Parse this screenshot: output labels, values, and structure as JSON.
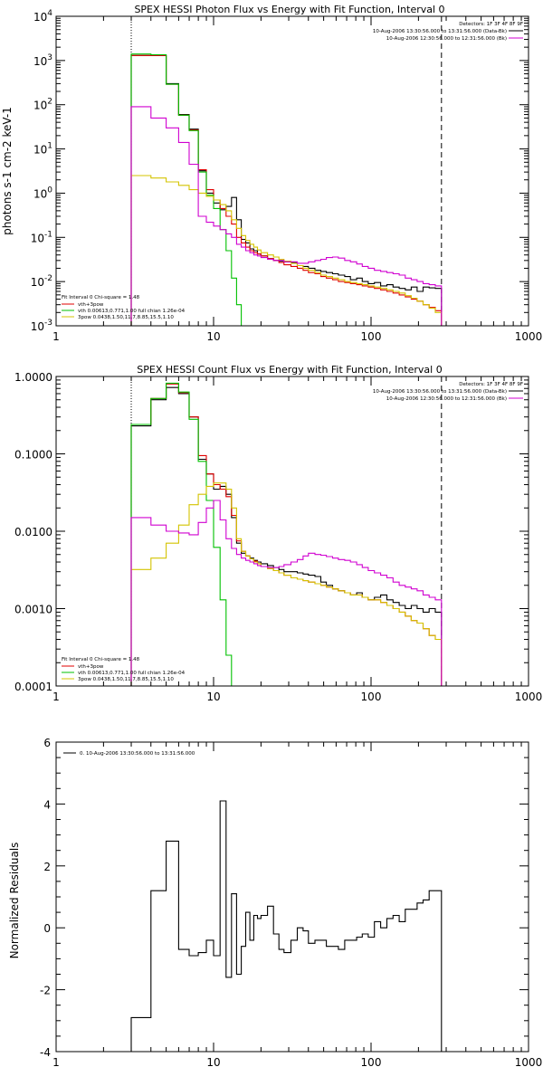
{
  "chart_data": [
    {
      "type": "line",
      "title": "SPEX HESSI Photon Flux vs Energy with Fit Function, Interval 0",
      "xlabel": "",
      "ylabel": "photons s-1 cm-2 keV-1",
      "xscale": "log",
      "yscale": "log",
      "xlim": [
        1,
        1000
      ],
      "ylim": [
        0.001,
        10000
      ],
      "x_ticks": [
        "1",
        "10",
        "100",
        "1000"
      ],
      "y_ticks": [
        "10^-3",
        "10^-2",
        "10^-1",
        "10^0",
        "10^1",
        "10^2",
        "10^3",
        "10^4"
      ],
      "legend_top": [
        "Detectors: 1F 3F 4F 8F 9F",
        "10-Aug-2006 13:30:56.000 to 13:31:56.000 (Data-Bk)",
        "10-Aug-2006 12:30:56.000 to 12:31:56.000 (Bk)"
      ],
      "legend_bottom": [
        "Fit Interval 0   Chi-square = 1.48",
        "vth+3pow",
        "vth 0.00613,0.771,1.00   full chian 1.26e-04",
        "3pow 0.0438,1.50,11.7,8.85,15.5,1.10"
      ],
      "vlines": [
        3,
        280
      ],
      "energy_edges": [
        3,
        4,
        5,
        6,
        7,
        8,
        9,
        10,
        11,
        12,
        13,
        14,
        15,
        16,
        17,
        18,
        19,
        20,
        22,
        24,
        26,
        28,
        31,
        34,
        37,
        40,
        44,
        48,
        52,
        57,
        62,
        68,
        74,
        81,
        88,
        96,
        105,
        115,
        126,
        138,
        151,
        165,
        180,
        196,
        214,
        234,
        256,
        280
      ],
      "series": [
        {
          "name": "Data-Bk",
          "color": "#000000",
          "values": [
            1300,
            1300,
            300,
            60,
            28,
            3.2,
            1.0,
            0.6,
            0.42,
            0.5,
            0.8,
            0.25,
            0.09,
            0.075,
            0.055,
            0.05,
            0.042,
            0.038,
            0.033,
            0.03,
            0.029,
            0.028,
            0.027,
            0.023,
            0.022,
            0.02,
            0.018,
            0.017,
            0.016,
            0.015,
            0.014,
            0.013,
            0.011,
            0.012,
            0.01,
            0.009,
            0.0095,
            0.008,
            0.0085,
            0.0075,
            0.007,
            0.0065,
            0.0075,
            0.006,
            0.0075,
            0.0072,
            0.007
          ]
        },
        {
          "name": "vth+3pow",
          "color": "#e00000",
          "values": [
            1300,
            1300,
            290,
            58,
            27,
            3.4,
            1.2,
            0.7,
            0.45,
            0.3,
            0.2,
            0.1,
            0.075,
            0.06,
            0.05,
            0.045,
            0.042,
            0.038,
            0.033,
            0.03,
            0.027,
            0.024,
            0.022,
            0.02,
            0.018,
            0.016,
            0.015,
            0.013,
            0.012,
            0.011,
            0.01,
            0.0095,
            0.009,
            0.0085,
            0.008,
            0.0075,
            0.007,
            0.0065,
            0.006,
            0.0055,
            0.005,
            0.0045,
            0.004,
            0.0036,
            0.003,
            0.0026,
            0.0022
          ]
        },
        {
          "name": "vth",
          "color": "#00c000",
          "values": [
            1400,
            1350,
            290,
            58,
            26,
            3.0,
            0.9,
            0.45,
            0.15,
            0.05,
            0.012,
            0.003,
            0.001
          ]
        },
        {
          "name": "3pow",
          "color": "#d4c400",
          "values": [
            2.5,
            2.2,
            1.8,
            1.5,
            1.2,
            1.0,
            0.85,
            0.7,
            0.55,
            0.4,
            0.25,
            0.16,
            0.11,
            0.085,
            0.07,
            0.06,
            0.052,
            0.045,
            0.04,
            0.036,
            0.032,
            0.029,
            0.026,
            0.023,
            0.02,
            0.018,
            0.016,
            0.014,
            0.013,
            0.012,
            0.011,
            0.01,
            0.0095,
            0.009,
            0.0085,
            0.008,
            0.0075,
            0.007,
            0.0065,
            0.006,
            0.0055,
            0.0048,
            0.0042,
            0.0036,
            0.003,
            0.0025,
            0.002
          ]
        },
        {
          "name": "Bk",
          "color": "#d000d0",
          "values": [
            90,
            50,
            30,
            14,
            4.5,
            0.3,
            0.22,
            0.18,
            0.15,
            0.12,
            0.1,
            0.07,
            0.06,
            0.05,
            0.045,
            0.04,
            0.038,
            0.035,
            0.032,
            0.03,
            0.03,
            0.028,
            0.028,
            0.026,
            0.026,
            0.028,
            0.03,
            0.032,
            0.035,
            0.036,
            0.034,
            0.03,
            0.028,
            0.025,
            0.022,
            0.02,
            0.018,
            0.017,
            0.016,
            0.015,
            0.014,
            0.012,
            0.011,
            0.01,
            0.009,
            0.0085,
            0.008
          ]
        }
      ]
    },
    {
      "type": "line",
      "title": "SPEX HESSI Count Flux vs Energy with Fit Function, Interval 0",
      "xlabel": "",
      "ylabel": "",
      "xscale": "log",
      "yscale": "log",
      "xlim": [
        1,
        1000
      ],
      "ylim": [
        0.0001,
        1.0
      ],
      "x_ticks": [
        "1",
        "10",
        "100",
        "1000"
      ],
      "y_ticks": [
        "0.0001",
        "0.0010",
        "0.0100",
        "0.1000",
        "1.0000"
      ],
      "legend_top": [
        "Detectors: 1F 3F 4F 8F 9F",
        "10-Aug-2006 13:30:56.000 to 13:31:56.000 (Data-Bk)",
        "10-Aug-2006 12:30:56.000 to 12:31:56.000 (Bk)"
      ],
      "legend_bottom": [
        "Fit Interval 0   Chi-square = 1.48",
        "vth+3pow",
        "vth 0.00613,0.771,1.00   full chian 1.26e-04",
        "3pow 0.0438,1.50,11.7,8.85,15.5,1.10"
      ],
      "vlines": [
        3,
        280
      ],
      "energy_edges": [
        3,
        4,
        5,
        6,
        7,
        8,
        9,
        10,
        11,
        12,
        13,
        14,
        15,
        16,
        17,
        18,
        19,
        20,
        22,
        24,
        26,
        28,
        31,
        34,
        37,
        40,
        44,
        48,
        52,
        57,
        62,
        68,
        74,
        81,
        88,
        96,
        105,
        115,
        126,
        138,
        151,
        165,
        180,
        196,
        214,
        234,
        256,
        280
      ],
      "series": [
        {
          "name": "Data-Bk",
          "color": "#000000",
          "values": [
            0.23,
            0.5,
            0.72,
            0.6,
            0.3,
            0.085,
            0.055,
            0.035,
            0.038,
            0.03,
            0.015,
            0.007,
            0.0052,
            0.0048,
            0.0045,
            0.0042,
            0.004,
            0.0038,
            0.0036,
            0.0034,
            0.0032,
            0.003,
            0.003,
            0.0029,
            0.0028,
            0.0027,
            0.0026,
            0.0022,
            0.002,
            0.0018,
            0.0017,
            0.0016,
            0.0015,
            0.0016,
            0.0014,
            0.0013,
            0.0014,
            0.0015,
            0.0013,
            0.0012,
            0.0011,
            0.001,
            0.0011,
            0.001,
            0.0009,
            0.001,
            0.0009
          ]
        },
        {
          "name": "vth+3pow",
          "color": "#e00000",
          "values": [
            0.24,
            0.52,
            0.8,
            0.62,
            0.3,
            0.095,
            0.055,
            0.04,
            0.035,
            0.028,
            0.016,
            0.0075,
            0.0055,
            0.0048,
            0.0044,
            0.0041,
            0.0038,
            0.0035,
            0.0033,
            0.0031,
            0.0029,
            0.0027,
            0.0025,
            0.0024,
            0.0023,
            0.0022,
            0.0021,
            0.002,
            0.0019,
            0.0018,
            0.0017,
            0.0016,
            0.0015,
            0.0015,
            0.0014,
            0.0013,
            0.0013,
            0.0012,
            0.0011,
            0.001,
            0.0009,
            0.0008,
            0.0007,
            0.00065,
            0.00055,
            0.00045,
            0.0004
          ]
        },
        {
          "name": "vth",
          "color": "#00c000",
          "values": [
            0.24,
            0.52,
            0.82,
            0.63,
            0.28,
            0.08,
            0.025,
            0.0062,
            0.0013,
            0.00025,
            8e-05
          ]
        },
        {
          "name": "3pow",
          "color": "#d4c400",
          "values": [
            0.0032,
            0.0045,
            0.007,
            0.012,
            0.022,
            0.03,
            0.038,
            0.042,
            0.042,
            0.035,
            0.02,
            0.008,
            0.0055,
            0.0048,
            0.0044,
            0.004,
            0.0038,
            0.0035,
            0.0033,
            0.0031,
            0.0029,
            0.0027,
            0.0025,
            0.0024,
            0.0023,
            0.0022,
            0.0021,
            0.002,
            0.0019,
            0.0018,
            0.0017,
            0.0016,
            0.0015,
            0.0015,
            0.0014,
            0.0013,
            0.0013,
            0.0012,
            0.0011,
            0.001,
            0.0009,
            0.0008,
            0.0007,
            0.00065,
            0.00055,
            0.00045,
            0.0004
          ]
        },
        {
          "name": "Bk",
          "color": "#d000d0",
          "values": [
            0.015,
            0.012,
            0.01,
            0.0095,
            0.009,
            0.013,
            0.02,
            0.025,
            0.014,
            0.008,
            0.006,
            0.005,
            0.0045,
            0.0042,
            0.004,
            0.0038,
            0.0036,
            0.0035,
            0.0034,
            0.0034,
            0.0035,
            0.0037,
            0.004,
            0.0043,
            0.0048,
            0.0052,
            0.005,
            0.0049,
            0.0047,
            0.0045,
            0.0043,
            0.0042,
            0.004,
            0.0037,
            0.0034,
            0.0031,
            0.0029,
            0.0027,
            0.0025,
            0.0022,
            0.002,
            0.0019,
            0.0018,
            0.0017,
            0.0015,
            0.0014,
            0.0013
          ]
        }
      ]
    },
    {
      "type": "line",
      "title": "",
      "xlabel": "",
      "ylabel": "Normalized Residuals",
      "xscale": "log",
      "yscale": "linear",
      "xlim": [
        1,
        1000
      ],
      "ylim": [
        -4,
        6
      ],
      "x_ticks": [
        "1",
        "10",
        "100",
        "1000"
      ],
      "y_ticks": [
        "-4",
        "-2",
        "0",
        "2",
        "4",
        "6"
      ],
      "legend": [
        "0. 10-Aug-2006 13:30:56.000 to 13:31:56.000"
      ],
      "energy_edges": [
        3,
        4,
        5,
        6,
        7,
        8,
        9,
        10,
        11,
        12,
        13,
        14,
        15,
        16,
        17,
        18,
        19,
        20,
        22,
        24,
        26,
        28,
        31,
        34,
        37,
        40,
        44,
        48,
        52,
        57,
        62,
        68,
        74,
        81,
        88,
        96,
        105,
        115,
        126,
        138,
        151,
        165,
        180,
        196,
        214,
        234,
        256,
        280
      ],
      "series": [
        {
          "name": "0",
          "color": "#000000",
          "values": [
            -2.9,
            1.2,
            2.8,
            -0.7,
            -0.9,
            -0.8,
            -0.4,
            -0.9,
            4.1,
            -1.6,
            1.1,
            -1.5,
            -0.6,
            0.5,
            -0.4,
            0.4,
            0.3,
            0.4,
            0.7,
            -0.2,
            -0.7,
            -0.8,
            -0.4,
            0.0,
            -0.1,
            -0.5,
            -0.4,
            -0.4,
            -0.6,
            -0.6,
            -0.7,
            -0.4,
            -0.4,
            -0.3,
            -0.2,
            -0.3,
            0.2,
            0.0,
            0.3,
            0.4,
            0.2,
            0.6,
            0.6,
            0.8,
            0.9,
            1.2,
            1.2
          ]
        }
      ]
    }
  ]
}
